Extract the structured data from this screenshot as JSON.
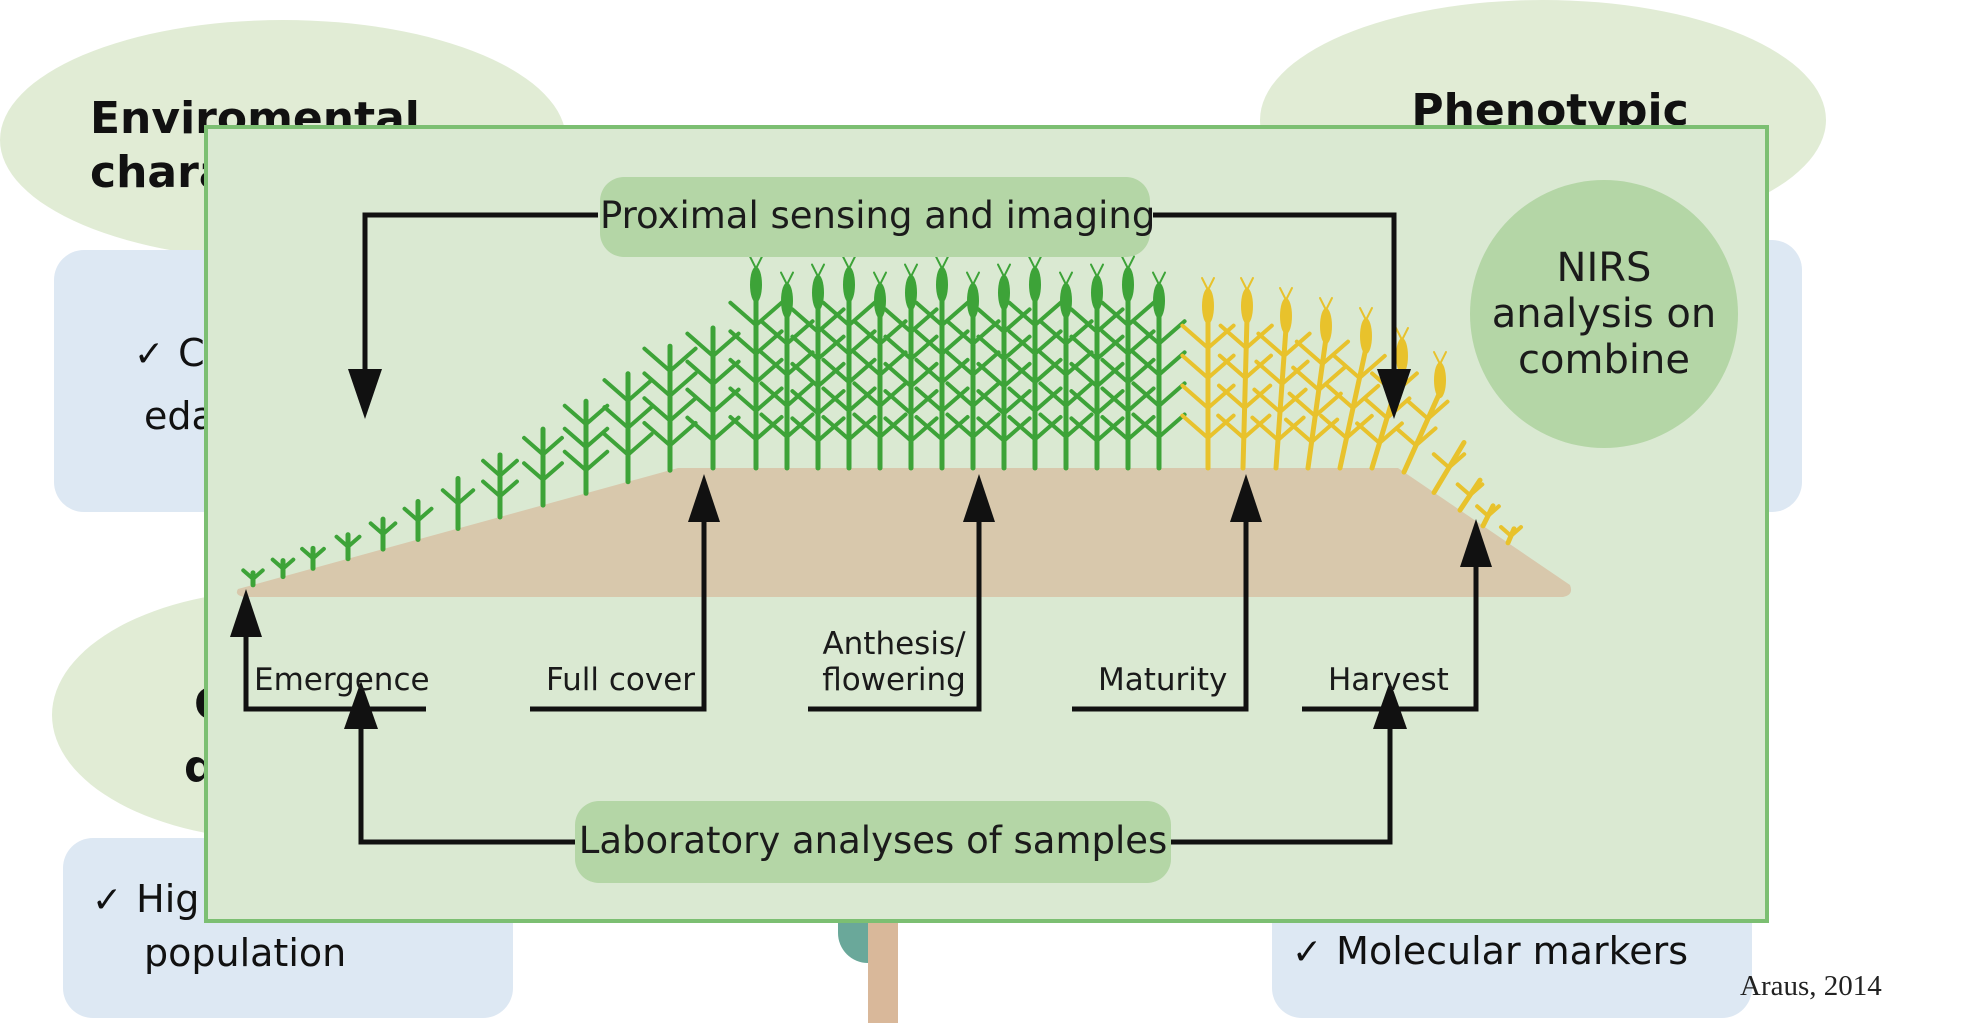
{
  "background": {
    "top_left_title": "Enviromental chara",
    "top_right_title": "Phenotypic",
    "mid_left_text": "edaphic",
    "mid_left_check_text": "C",
    "bottom_left_title_line1": "G",
    "bottom_left_title_line2": "d",
    "bottom_left_text_line1": "Hig",
    "bottom_left_text_line2": "population",
    "bottom_right_text": "Molecular markers",
    "check_mark": "✓"
  },
  "diagram": {
    "top_label": "Proximal sensing and imaging",
    "bottom_label": "Laboratory analyses of samples",
    "nirs_label": "NIRS analysis on combine",
    "stages": [
      {
        "line1": "Emergence",
        "line2": ""
      },
      {
        "line1": "Full cover",
        "line2": ""
      },
      {
        "line1": "Anthesis/",
        "line2": "flowering"
      },
      {
        "line1": "Maturity",
        "line2": ""
      },
      {
        "line1": "Harvest",
        "line2": ""
      }
    ]
  },
  "credit": "Araus, 2014",
  "colors": {
    "panel_bg": "#dae9d2",
    "panel_border": "#7cbf72",
    "pill": "#b4d6a6",
    "soil": "#d8c8ac",
    "green_plant": "#3da338",
    "yellow_plant": "#e8c22c",
    "blue_box": "#dde8f3",
    "ellipse": "#e1ecd5"
  }
}
